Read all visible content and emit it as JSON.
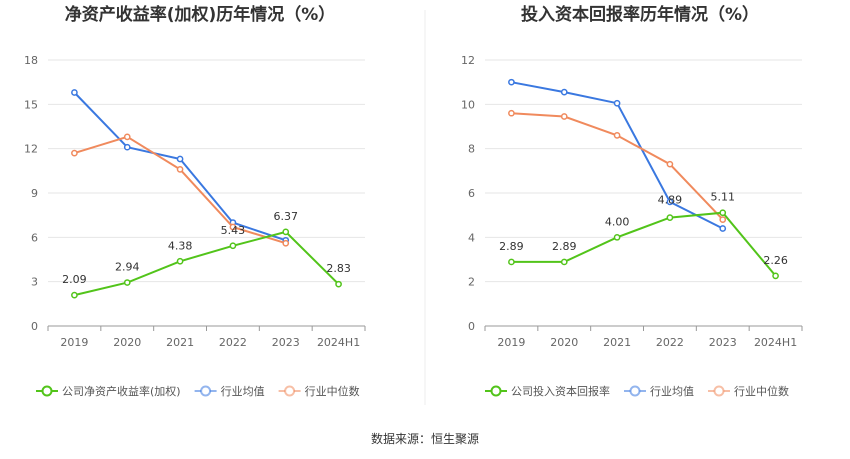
{
  "source": "数据来源：恒生聚源",
  "colors": {
    "company": "#52c41a",
    "average": "#3a78e0",
    "median": "#f08a5d"
  },
  "chart_data": [
    {
      "type": "line",
      "title": "净资产收益率(加权)历年情况（%）",
      "categories": [
        "2019",
        "2020",
        "2021",
        "2022",
        "2023",
        "2024H1"
      ],
      "ylim": [
        0,
        18
      ],
      "yticks": [
        0,
        3,
        6,
        9,
        12,
        15,
        18
      ],
      "grid": true,
      "legend_position": "bottom",
      "series": [
        {
          "key": "company",
          "name": "公司净资产收益率(加权)",
          "values": [
            2.09,
            2.94,
            4.38,
            5.43,
            6.37,
            2.83
          ],
          "labels": [
            "2.09",
            "2.94",
            "4.38",
            "5.43",
            "6.37",
            "2.83"
          ]
        },
        {
          "key": "average",
          "name": "行业均值",
          "values": [
            15.8,
            12.1,
            11.3,
            7.0,
            5.8,
            null
          ]
        },
        {
          "key": "median",
          "name": "行业中位数",
          "values": [
            11.7,
            12.8,
            10.6,
            6.7,
            5.6,
            null
          ]
        }
      ]
    },
    {
      "type": "line",
      "title": "投入资本回报率历年情况（%）",
      "categories": [
        "2019",
        "2020",
        "2021",
        "2022",
        "2023",
        "2024H1"
      ],
      "ylim": [
        0,
        12
      ],
      "yticks": [
        0,
        2,
        4,
        6,
        8,
        10,
        12
      ],
      "grid": true,
      "legend_position": "bottom",
      "series": [
        {
          "key": "company",
          "name": "公司投入资本回报率",
          "values": [
            2.89,
            2.89,
            4.0,
            4.89,
            5.11,
            2.26
          ],
          "labels": [
            "2.89",
            "2.89",
            "4.00",
            "4.89",
            "5.11",
            "2.26"
          ]
        },
        {
          "key": "average",
          "name": "行业均值",
          "values": [
            11.0,
            10.55,
            10.05,
            5.6,
            4.4,
            null
          ]
        },
        {
          "key": "median",
          "name": "行业中位数",
          "values": [
            9.6,
            9.45,
            8.6,
            7.3,
            4.8,
            null
          ]
        }
      ]
    }
  ]
}
